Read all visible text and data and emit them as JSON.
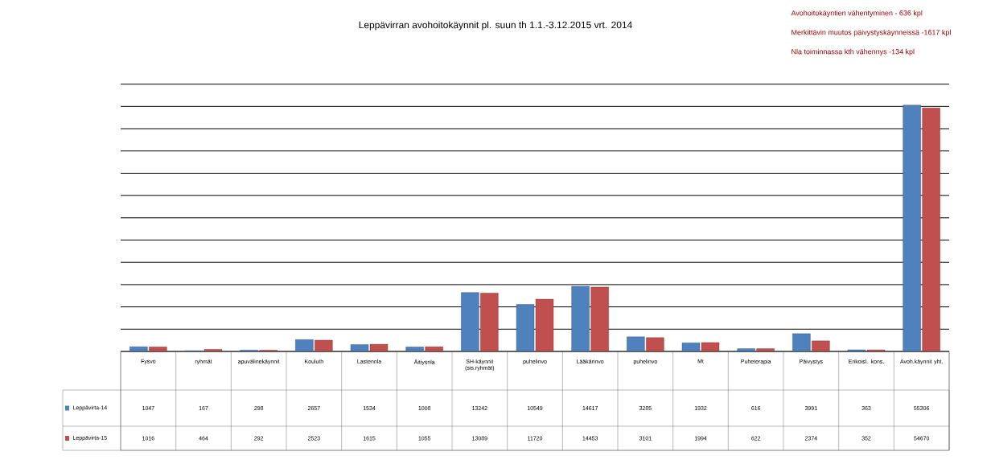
{
  "chart_data": {
    "type": "bar",
    "title": "Leppävirran avohoitokäynnit pl. suun th 1.1.-3.12.2015 vrt. 2014",
    "annotations": [
      "Avohoitokäyntien vähentyminen - 636 kpl",
      "Merkittävin muutos päivystyskäynneissä -1617 kpl",
      "Nla toiminnassa kth vähennys -134 kpl"
    ],
    "categories": [
      "Fysvo",
      "ryhmät",
      "apuvälinekäynnit",
      "Kouluth",
      "Lastennla",
      "Äitiysnla",
      "SH-käynnit (sis.ryhmät)",
      "puhelinvo",
      "Lääkärinvo",
      "puhelinvo",
      "Mt",
      "Puheterapia",
      "Päivystys",
      "Erikoisl. kons.",
      "Avoh.käynnit yht."
    ],
    "series": [
      {
        "name": "Leppävirta-14",
        "color": "#4f81bd",
        "values": [
          1047,
          167,
          298,
          2657,
          1534,
          1008,
          13242,
          10549,
          14617,
          3285,
          1932,
          616,
          3991,
          363,
          55306
        ]
      },
      {
        "name": "Leppävirta-15",
        "color": "#c0504d",
        "values": [
          1016,
          464,
          292,
          2523,
          1615,
          1055,
          13089,
          11720,
          14453,
          3101,
          1994,
          622,
          2374,
          352,
          54670
        ]
      }
    ],
    "grid": "y",
    "tick_labels": "x",
    "data_labels": true,
    "legend": "bottom left"
  }
}
